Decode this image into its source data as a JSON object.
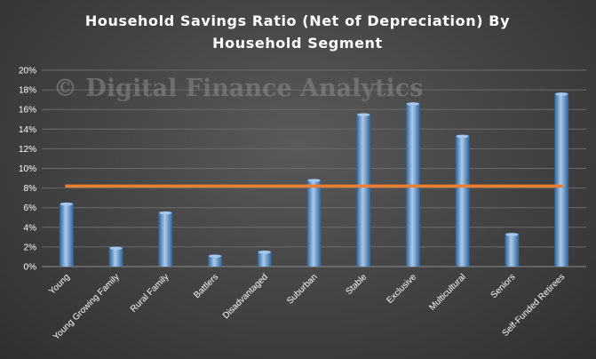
{
  "chart_data": {
    "type": "bar",
    "title_lines": [
      "Household  Savings  Ratio  (Net of  Depreciation)  By",
      "Household  Segment"
    ],
    "watermark": "© Digital Finance Analytics",
    "categories": [
      "Young",
      "Young Growing Family",
      "Rural Family",
      "Battlers",
      "Disadvantaged",
      "Suburban",
      "Stable",
      "Exclusive",
      "Multicultural",
      "Seniors",
      "Self-Funded Retirees"
    ],
    "values": [
      6.5,
      2.0,
      5.6,
      1.2,
      1.6,
      8.9,
      15.6,
      16.7,
      13.4,
      3.4,
      17.7
    ],
    "reference_line": {
      "value": 8.2,
      "color": "#ed7d31"
    },
    "ylim": [
      0,
      20
    ],
    "y_ticks": [
      "0%",
      "2%",
      "4%",
      "6%",
      "8%",
      "10%",
      "12%",
      "14%",
      "16%",
      "18%",
      "20%"
    ],
    "y_tick_values": [
      0,
      2,
      4,
      6,
      8,
      10,
      12,
      14,
      16,
      18,
      20
    ],
    "grid": true,
    "legend": "none",
    "colors": {
      "bar_light": "#a9cbee",
      "bar_mid": "#5b9bd5",
      "bar_dark": "#2c5f93",
      "grid": "#6a6a6a",
      "text": "#ffffff"
    }
  }
}
